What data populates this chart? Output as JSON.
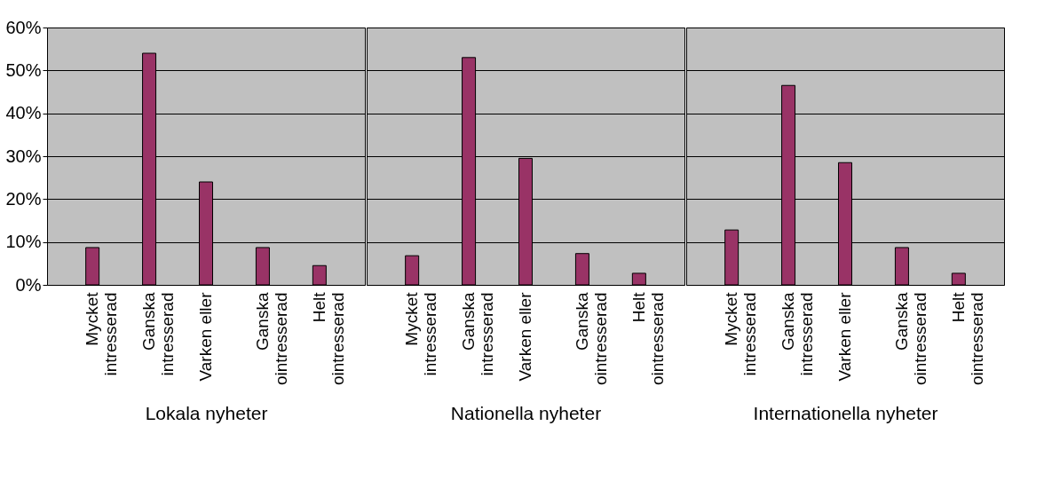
{
  "chart_data": [
    {
      "type": "bar",
      "xlabel": "Lokala nyheter",
      "categories": [
        "Mycket\nintresserad",
        "Ganska\nintresserad",
        "Varken eller",
        "Ganska\nointresserad",
        "Helt\nointresserad"
      ],
      "values": [
        8.7,
        54,
        24,
        8.7,
        4.5
      ],
      "color": "#993366",
      "ylim": [
        0,
        60
      ],
      "yticks": [
        {
          "value": 0,
          "label": "0%"
        },
        {
          "value": 10,
          "label": "10%"
        },
        {
          "value": 20,
          "label": "20%"
        },
        {
          "value": 30,
          "label": "30%"
        },
        {
          "value": 40,
          "label": "40%"
        },
        {
          "value": 50,
          "label": "50%"
        },
        {
          "value": 60,
          "label": "60%"
        }
      ],
      "grid": "y"
    },
    {
      "type": "bar",
      "xlabel": "Nationella nyheter",
      "categories": [
        "Mycket\nintresserad",
        "Ganska\nintresserad",
        "Varken eller",
        "Ganska\nointresserad",
        "Helt\nointresserad"
      ],
      "values": [
        6.8,
        53,
        29.5,
        7.3,
        2.7
      ],
      "color": "#993366",
      "ylim": [
        0,
        60
      ],
      "yticks": [
        0,
        10,
        20,
        30,
        40,
        50,
        60
      ],
      "grid": "y",
      "tick_labels": "x"
    },
    {
      "type": "bar",
      "xlabel": "Internationella nyheter",
      "categories": [
        "Mycket\nintresserad",
        "Ganska\nintresserad",
        "Varken eller",
        "Ganska\nointresserad",
        "Helt\nointresserad"
      ],
      "values": [
        12.8,
        46.5,
        28.5,
        8.7,
        2.7
      ],
      "color": "#993366",
      "ylim": [
        0,
        60
      ],
      "yticks": [
        0,
        10,
        20,
        30,
        40,
        50,
        60
      ],
      "grid": "y",
      "tick_labels": "x"
    }
  ]
}
